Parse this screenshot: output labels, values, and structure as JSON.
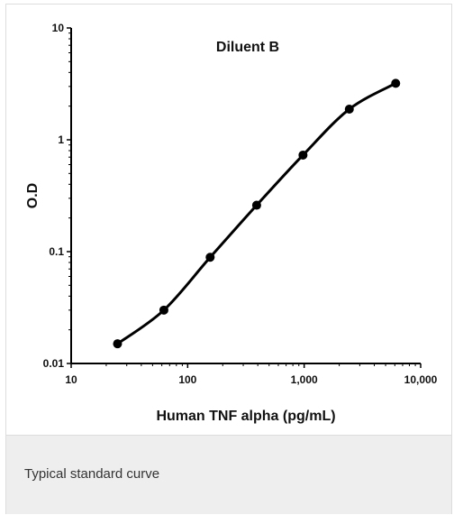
{
  "caption": "Typical standard curve",
  "chart_data": {
    "type": "line",
    "title": "Diluent B",
    "xlabel": "Human TNF alpha (pg/mL)",
    "ylabel": "O.D",
    "x_scale": "log",
    "y_scale": "log",
    "xlim": [
      10,
      10000
    ],
    "ylim": [
      0.01,
      10
    ],
    "x_ticks": [
      10,
      100,
      1000,
      10000
    ],
    "x_tick_labels": [
      "10",
      "100",
      "1,000",
      "10,000"
    ],
    "y_ticks": [
      0.01,
      0.1,
      1,
      10
    ],
    "y_tick_labels": [
      "0.01",
      "0.1",
      "1",
      "10"
    ],
    "grid": false,
    "series": [
      {
        "color": "#000000",
        "x": [
          25,
          62.5,
          156,
          391,
          977,
          2441,
          6104
        ],
        "y": [
          0.015,
          0.03,
          0.089,
          0.26,
          0.73,
          1.88,
          3.2
        ]
      }
    ]
  }
}
